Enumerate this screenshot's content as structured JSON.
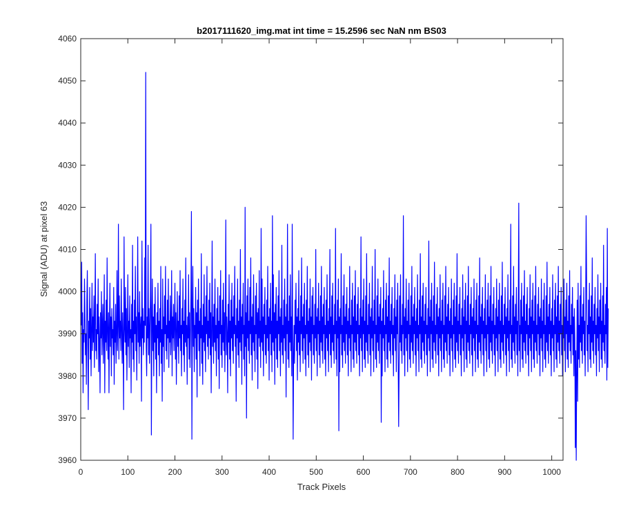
{
  "chart_data": {
    "type": "line",
    "title": "b2017111620_img.mat int time = 15.2596 sec  NaN nm BS03",
    "xlabel": "Track Pixels",
    "ylabel": "Signal (ADU) at pixel 63",
    "xlim": [
      0,
      1024
    ],
    "ylim": [
      3960,
      4060
    ],
    "xticks": [
      0,
      100,
      200,
      300,
      400,
      500,
      600,
      700,
      800,
      900,
      1000
    ],
    "yticks": [
      3960,
      3970,
      3980,
      3990,
      4000,
      4010,
      4020,
      4030,
      4040,
      4050,
      4060
    ],
    "grid": false,
    "legend": "none",
    "line_color": "#0000ff",
    "series": [
      {
        "x_start": 1,
        "x_step": 1,
        "y": [
          3992,
          4007,
          3983,
          3995,
          3976,
          3991,
          3988,
          4003,
          3994,
          3985,
          3990,
          3978,
          3998,
          4005,
          3987,
          3972,
          3993,
          3989,
          4001,
          3984,
          3996,
          3980,
          3991,
          4002,
          3986,
          3994,
          3988,
          3999,
          3982,
          3993,
          4009,
          3986,
          3991,
          3984,
          3997,
          3990,
          4003,
          3981,
          3994,
          3988,
          3976,
          3995,
          3989,
          4000,
          3985,
          3992,
          3997,
          3983,
          3991,
          4004,
          3976,
          3993,
          3988,
          3998,
          3986,
          4008,
          3990,
          3984,
          3995,
          3976,
          3992,
          4002,
          3987,
          3994,
          3980,
          3996,
          3989,
          3991,
          3985,
          4001,
          3978,
          3993,
          3988,
          3997,
          3983,
          3990,
          4005,
          3986,
          3992,
          4016,
          3984,
          3999,
          3989,
          3993,
          3986,
          4003,
          3991,
          3983,
          3995,
          3987,
          3972,
          4013,
          3992,
          3988,
          4001,
          3985,
          3996,
          3979,
          3990,
          4004,
          3987,
          3993,
          3982,
          3999,
          3989,
          3991,
          3976,
          3997,
          3988,
          4011,
          3984,
          3993,
          3981,
          3998,
          3990,
          4006,
          3986,
          3994,
          3979,
          3992,
          4013,
          3988,
          3995,
          3983,
          4000,
          3987,
          3991,
          3994,
          3974,
          4012,
          3989,
          3996,
          3985,
          3993,
          3988,
          4008,
          3992,
          4052,
          3987,
          3980,
          3994,
          3989,
          4011,
          3985,
          3996,
          3983,
          3991,
          3999,
          4016,
          3966,
          3992,
          4003,
          3986,
          3994,
          3980,
          3997,
          3988,
          4001,
          3984,
          3992,
          3976,
          3995,
          3989,
          4002,
          3985,
          3993,
          3980,
          3996,
          3988,
          4006,
          3983,
          3991,
          3974,
          4003,
          3987,
          3994,
          3981,
          3999,
          3990,
          4006,
          3986,
          3992,
          3984,
          3998,
          3989,
          4003,
          3982,
          3993,
          3988,
          3999,
          3985,
          3991,
          4005,
          3980,
          3994,
          3989,
          3997,
          3986,
          3992,
          4002,
          3984,
          3995,
          3978,
          3991,
          4000,
          3987,
          3993,
          3983,
          3999,
          3989,
          4005,
          3986,
          3992,
          3980,
          3996,
          3990,
          4003,
          3985,
          3993,
          3981,
          3998,
          3988,
          4008,
          3987,
          3992,
          3978,
          3994,
          3989,
          4004,
          3984,
          3995,
          3982,
          3990,
          3999,
          4019,
          3965,
          3993,
          4006,
          3987,
          3996,
          3981,
          3992,
          3989,
          4001,
          3984,
          3995,
          3975,
          3998,
          3990,
          4003,
          3986,
          3993,
          3980,
          3996,
          3989,
          4009,
          3983,
          3992,
          3978,
          3997,
          3988,
          4004,
          3986,
          3994,
          3981,
          3999,
          3990,
          4006,
          3987,
          3993,
          3984,
          3998,
          3989,
          4002,
          3985,
          3995,
          3976,
          3991,
          4012,
          3987,
          3994,
          3983,
          3997,
          3988,
          4003,
          3986,
          3992,
          3980,
          3996,
          3989,
          4001,
          3984,
          3993,
          3977,
          3999,
          3990,
          4005,
          3985,
          3992,
          3982,
          3998,
          3988,
          4002,
          3986,
          3995,
          3981,
          3993,
          4017,
          3985,
          3994,
          3990,
          3976,
          3997,
          3988,
          4004,
          3984,
          3993,
          3980,
          3998,
          3989,
          4002,
          3986,
          3994,
          3983,
          3999,
          3990,
          4006,
          3987,
          3992,
          3974,
          3996,
          3989,
          4003,
          3985,
          3993,
          3982,
          3998,
          3988,
          4010,
          3986,
          3994,
          3978,
          3997,
          3990,
          4002,
          3984,
          3992,
          3980,
          4020,
          3987,
          3995,
          3970,
          3999,
          3989,
          4003,
          3986,
          3993,
          3983,
          4001,
          3990,
          4008,
          3985,
          3994,
          3979,
          3997,
          3988,
          4004,
          3986,
          3992,
          3981,
          3999,
          3990,
          4002,
          3984,
          3995,
          3977,
          3996,
          3989,
          4005,
          3987,
          3993,
          3982,
          4015,
          3988,
          4003,
          3986,
          3994,
          3980,
          3997,
          3990,
          4001,
          3985,
          3992,
          3983,
          3998,
          3989,
          4006,
          3986,
          3994,
          3979,
          3996,
          3990,
          4002,
          3985,
          3993,
          3981,
          4018,
          3988,
          4004,
          3986,
          3995,
          3978,
          3997,
          3989,
          4001,
          3984,
          3993,
          3982,
          3999,
          3990,
          4005,
          3986,
          3994,
          3980,
          3996,
          3988,
          4011,
          3985,
          3992,
          3983,
          3998,
          3989,
          4003,
          3986,
          3994,
          3975,
          3997,
          3990,
          4016,
          3984,
          3993,
          3982,
          3999,
          3988,
          4004,
          3986,
          3994,
          3980,
          4016,
          3989,
          3965,
          3985,
          3992,
          3983,
          3998,
          3990,
          4002,
          3986,
          3994,
          3979,
          3996,
          3988,
          4005,
          3985,
          3993,
          3981,
          3999,
          3990,
          4008,
          3986,
          3994,
          3983,
          3997,
          3989,
          4002,
          3984,
          3992,
          3980,
          3998,
          3990,
          4006,
          3985,
          3993,
          3982,
          3996,
          3988,
          4003,
          3986,
          3994,
          3979,
          3999,
          3990,
          4001,
          3985,
          3992,
          3983,
          3997,
          3989,
          4010,
          3986,
          3994,
          3980,
          3996,
          3990,
          4002,
          3985,
          3993,
          3982,
          3999,
          3988,
          4006,
          3986,
          3994,
          3983,
          3997,
          3990,
          4001,
          3984,
          3992,
          3980,
          3998,
          3989,
          4004,
          3986,
          3993,
          3981,
          3996,
          3990,
          4010,
          3985,
          3994,
          3982,
          3999,
          3988,
          4002,
          3986,
          3992,
          3983,
          3997,
          3990,
          4015,
          3984,
          3993,
          3980,
          3998,
          3989,
          4003,
          3967,
          3994,
          3981,
          3996,
          3990,
          4009,
          3985,
          3992,
          3982,
          3999,
          3988,
          4004,
          3986,
          3994,
          3983,
          3997,
          3990,
          4001,
          3985,
          3993,
          3980,
          3996,
          3989,
          4006,
          3986,
          3992,
          3981,
          3998,
          3990,
          4002,
          3984,
          3994,
          3982,
          3999,
          3988,
          4005,
          3986,
          3993,
          3983,
          3997,
          3990,
          4001,
          3985,
          3992,
          3980,
          3996,
          3989,
          4013,
          3986,
          3994,
          3981,
          3998,
          3990,
          4003,
          3984,
          3993,
          3982,
          3999,
          3988,
          4009,
          3986,
          3992,
          3983,
          3997,
          3990,
          4002,
          3985,
          3994,
          3980,
          3996,
          3989,
          4006,
          3986,
          3993,
          3981,
          3998,
          3990,
          4010,
          3984,
          3992,
          3982,
          3999,
          3988,
          4003,
          3986,
          3994,
          3983,
          3997,
          3990,
          4001,
          3969,
          3993,
          3980,
          3996,
          3989,
          4005,
          3986,
          3992,
          3981,
          3998,
          3990,
          4002,
          3984,
          3994,
          3982,
          3999,
          3988,
          4008,
          3986,
          3993,
          3983,
          3997,
          3990,
          4001,
          3985,
          3992,
          3980,
          3996,
          3989,
          4004,
          3986,
          3994,
          3981,
          3998,
          3990,
          4002,
          3984,
          3968,
          3982,
          3999,
          3988,
          4004,
          3986,
          3992,
          3983,
          3997,
          3990,
          4018,
          3985,
          3994,
          3980,
          3996,
          3989,
          4003,
          3986,
          3993,
          3981,
          3998,
          3990,
          4002,
          3984,
          3992,
          3982,
          3999,
          3988,
          4006,
          3986,
          3994,
          3983,
          3997,
          3990,
          4001,
          3985,
          3993,
          3980,
          3996,
          3989,
          4004,
          3986,
          3992,
          3981,
          3998,
          3990,
          4009,
          3984,
          3994,
          3982,
          3999,
          3988,
          4002,
          3986,
          3993,
          3983,
          3997,
          3990,
          4001,
          3985,
          3992,
          3980,
          3996,
          3989,
          4012,
          3986,
          3994,
          3981,
          3998,
          3990,
          4002,
          3984,
          3993,
          3982,
          3999,
          3988,
          4007,
          3986,
          3992,
          3983,
          3997,
          3990,
          4001,
          3985,
          3994,
          3980,
          3996,
          3989,
          4004,
          3986,
          3993,
          3981,
          3998,
          3990,
          4002,
          3984,
          3992,
          3982,
          3999,
          3988,
          4006,
          3986,
          3994,
          3983,
          3997,
          3990,
          4001,
          3985,
          3993,
          3980,
          3996,
          3989,
          4003,
          3986,
          3992,
          3981,
          3998,
          3990,
          4002,
          3984,
          3994,
          3982,
          3999,
          3988,
          4009,
          3986,
          3993,
          3983,
          3997,
          3990,
          4001,
          3985,
          3992,
          3980,
          3996,
          3989,
          4004,
          3986,
          3994,
          3981,
          3998,
          3990,
          4002,
          3984,
          3993,
          3982,
          3999,
          3988,
          4006,
          3986,
          3992,
          3983,
          3997,
          3990,
          4001,
          3985,
          3994,
          3980,
          3996,
          3989,
          4003,
          3986,
          3993,
          3981,
          3998,
          3990,
          4002,
          3984,
          3992,
          3982,
          3999,
          3988,
          4008,
          3986,
          3994,
          3983,
          3997,
          3990,
          4001,
          3985,
          3993,
          3980,
          3996,
          3989,
          4004,
          3986,
          3992,
          3981,
          3998,
          3990,
          4002,
          3984,
          3994,
          3982,
          3999,
          3988,
          4006,
          3986,
          3993,
          3983,
          3997,
          3990,
          4001,
          3985,
          3992,
          3980,
          3996,
          3989,
          4003,
          3986,
          3994,
          3981,
          3998,
          3990,
          4002,
          3984,
          3993,
          3982,
          3999,
          3988,
          4007,
          3986,
          3992,
          3983,
          3997,
          3990,
          4001,
          3985,
          3994,
          3980,
          3996,
          3989,
          4004,
          3986,
          3993,
          3981,
          3998,
          3990,
          4016,
          3984,
          3992,
          3982,
          3999,
          3988,
          4006,
          3986,
          3994,
          3983,
          3997,
          3990,
          4001,
          3985,
          3993,
          3980,
          3996,
          4021,
          3986,
          3992,
          3981,
          3998,
          3990,
          4002,
          3984,
          3994,
          3982,
          3999,
          3988,
          4005,
          3986,
          3993,
          3983,
          3997,
          3990,
          4001,
          3985,
          3992,
          3980,
          3996,
          3989,
          4004,
          3986,
          3994,
          3981,
          3998,
          3990,
          4002,
          3984,
          3993,
          3982,
          3999,
          3988,
          4006,
          3986,
          3992,
          3983,
          3997,
          3990,
          4001,
          3985,
          3994,
          3980,
          3996,
          3989,
          4003,
          3986,
          3993,
          3981,
          3998,
          3990,
          4002,
          3984,
          3992,
          3982,
          3999,
          3988,
          4007,
          3986,
          3994,
          3983,
          3997,
          3990,
          4001,
          3985,
          3993,
          3980,
          3996,
          3989,
          4004,
          3986,
          3992,
          3981,
          3998,
          3990,
          4002,
          3984,
          3994,
          3982,
          3999,
          3988,
          4006,
          3986,
          3993,
          3983,
          3997,
          3990,
          4001,
          3985,
          3992,
          3980,
          3996,
          3989,
          4003,
          3986,
          3994,
          3981,
          3998,
          3990,
          4002,
          3984,
          3993,
          3982,
          3999,
          3988,
          4005,
          3986,
          3992,
          3983,
          3997,
          3990,
          4001,
          3985,
          3994,
          3980,
          3996,
          3989,
          3963,
          3986,
          3960,
          3981,
          3998,
          3974,
          4002,
          3984,
          3992,
          3982,
          3999,
          3988,
          4006,
          3986,
          3994,
          3983,
          3997,
          3990,
          4001,
          3985,
          3993,
          3980,
          3996,
          4018,
          4003,
          3986,
          3992,
          3981,
          3998,
          3990,
          4002,
          3984,
          3994,
          3982,
          3999,
          3988,
          4008,
          3986,
          3993,
          3983,
          3997,
          3990,
          4001,
          3985,
          3992,
          3980,
          3996,
          3989,
          4004,
          3986,
          3994,
          3981,
          3998,
          3990,
          4002,
          3984,
          3993,
          3982,
          3999,
          3988,
          4011,
          3986,
          3992,
          3983,
          3997,
          3990,
          4001,
          3979,
          4015,
          3982,
          3996
        ]
      }
    ]
  }
}
